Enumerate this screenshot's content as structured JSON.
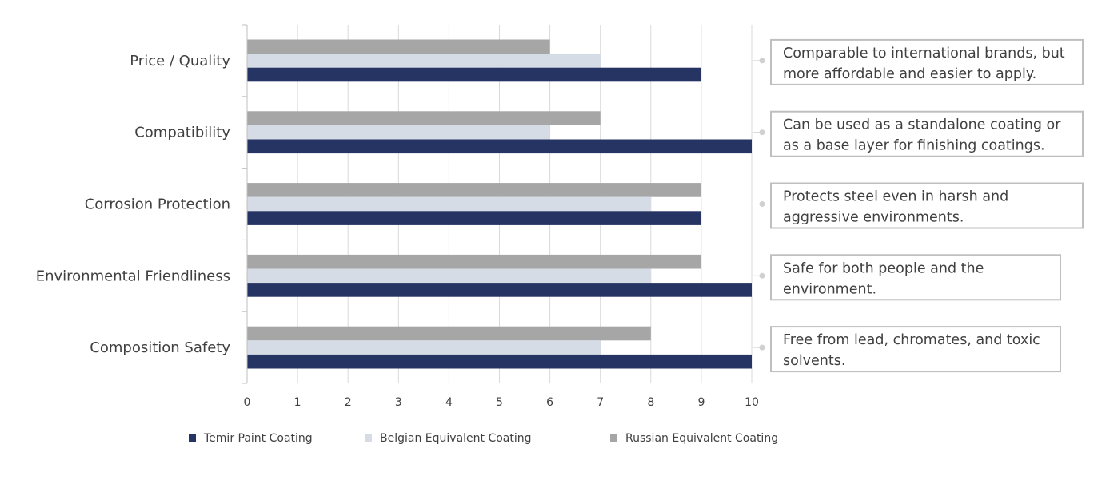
{
  "chart_data": {
    "type": "bar",
    "orientation": "horizontal",
    "categories": [
      "Price / Quality",
      "Compatibility",
      "Corrosion Protection",
      "Environmental Friendliness",
      "Composition Safety"
    ],
    "series": [
      {
        "name": "Temir Paint Coating",
        "color": "#263463",
        "values": [
          9,
          10,
          9,
          10,
          10
        ]
      },
      {
        "name": "Belgian Equivalent Coating",
        "color": "#d5dce6",
        "values": [
          7,
          6,
          8,
          8,
          7
        ]
      },
      {
        "name": "Russian Equivalent Coating",
        "color": "#a6a6a6",
        "values": [
          6,
          7,
          9,
          9,
          8
        ]
      }
    ],
    "xlim": [
      0,
      10
    ],
    "xticks": [
      "0",
      "1",
      "2",
      "3",
      "4",
      "5",
      "6",
      "7",
      "8",
      "9",
      "10"
    ],
    "grid": "vertical",
    "legend": "bottom",
    "annotations": [
      [
        "Comparable to international brands, but",
        " more affordable and easier to apply."
      ],
      [
        "Can be used as a standalone coating or",
        " as a base layer for finishing coatings."
      ],
      [
        "Protects steel even in harsh and",
        "aggressive environments."
      ],
      [
        "Safe for both people and the",
        "environment."
      ],
      [
        "Free from lead, chromates, and toxic",
        "solvents."
      ]
    ]
  }
}
